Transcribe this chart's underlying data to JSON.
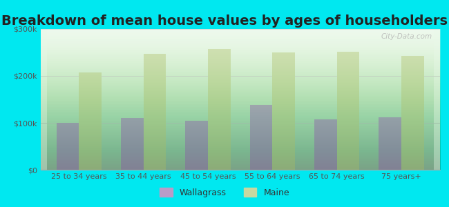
{
  "title": "Breakdown of mean house values by ages of householders",
  "categories": [
    "25 to 34 years",
    "35 to 44 years",
    "45 to 54 years",
    "55 to 64 years",
    "65 to 74 years",
    "75 years+"
  ],
  "wallagrass": [
    100000,
    110000,
    105000,
    138000,
    108000,
    112000
  ],
  "maine": [
    208000,
    247000,
    258000,
    250000,
    252000,
    242000
  ],
  "wallagrass_color": "#b89cc8",
  "maine_color": "#c8d8a0",
  "background_outer": "#00e8f0",
  "ylim": [
    0,
    300000
  ],
  "yticks": [
    0,
    100000,
    200000,
    300000
  ],
  "ytick_labels": [
    "$0",
    "$100k",
    "$200k",
    "$300k"
  ],
  "legend_wallagrass": "Wallagrass",
  "legend_maine": "Maine",
  "title_fontsize": 14,
  "bar_width": 0.35
}
